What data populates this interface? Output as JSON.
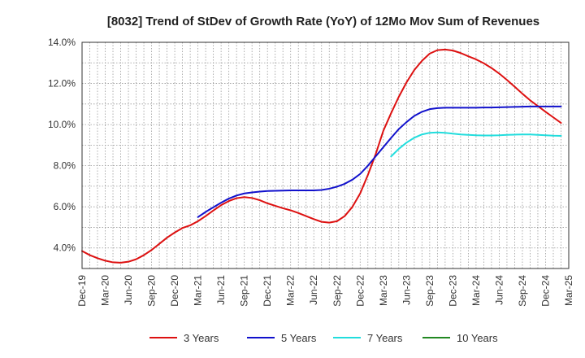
{
  "chart_data": {
    "type": "line",
    "title": "[8032]  Trend of StDev of Growth Rate (YoY) of 12Mo Mov Sum of Revenues",
    "xlabel": "",
    "ylabel": "",
    "ylim": [
      3.0,
      14.0
    ],
    "y_ticks": [
      4.0,
      6.0,
      8.0,
      10.0,
      12.0,
      14.0
    ],
    "y_tick_labels": [
      "4.0%",
      "6.0%",
      "8.0%",
      "10.0%",
      "12.0%",
      "14.0%"
    ],
    "x_tick_labels": [
      "Dec-19",
      "Mar-20",
      "Jun-20",
      "Sep-20",
      "Dec-20",
      "Mar-21",
      "Jun-21",
      "Sep-21",
      "Dec-21",
      "Mar-22",
      "Jun-22",
      "Sep-22",
      "Dec-22",
      "Mar-23",
      "Jun-23",
      "Sep-23",
      "Dec-23",
      "Mar-24",
      "Jun-24",
      "Sep-24",
      "Dec-24",
      "Mar-25"
    ],
    "x_months_span": 63,
    "grid": true,
    "legend_position": "bottom",
    "series": [
      {
        "name": "3 Years",
        "color": "#dd1111",
        "start_month": 0,
        "values": [
          3.85,
          3.65,
          3.5,
          3.38,
          3.3,
          3.28,
          3.33,
          3.45,
          3.65,
          3.9,
          4.2,
          4.5,
          4.75,
          4.97,
          5.1,
          5.3,
          5.55,
          5.82,
          6.08,
          6.28,
          6.42,
          6.47,
          6.43,
          6.32,
          6.17,
          6.05,
          5.93,
          5.83,
          5.7,
          5.55,
          5.4,
          5.27,
          5.23,
          5.3,
          5.55,
          6.0,
          6.65,
          7.55,
          8.55,
          9.7,
          10.55,
          11.35,
          12.05,
          12.65,
          13.1,
          13.45,
          13.62,
          13.65,
          13.6,
          13.48,
          13.32,
          13.17,
          12.98,
          12.75,
          12.48,
          12.17,
          11.84,
          11.5,
          11.18,
          10.9,
          10.62,
          10.35,
          10.08
        ]
      },
      {
        "name": "5 Years",
        "color": "#1111cc",
        "start_month": 15,
        "values": [
          5.5,
          5.75,
          5.98,
          6.2,
          6.4,
          6.55,
          6.65,
          6.7,
          6.74,
          6.77,
          6.78,
          6.79,
          6.8,
          6.8,
          6.8,
          6.8,
          6.82,
          6.88,
          6.98,
          7.12,
          7.32,
          7.6,
          8.0,
          8.45,
          8.9,
          9.35,
          9.78,
          10.12,
          10.42,
          10.62,
          10.75,
          10.8,
          10.82,
          10.82,
          10.82,
          10.82,
          10.82,
          10.83,
          10.83,
          10.84,
          10.85,
          10.86,
          10.87,
          10.88,
          10.88,
          10.88,
          10.88,
          10.88
        ]
      },
      {
        "name": "7 Years",
        "color": "#22dddd",
        "start_month": 40,
        "values": [
          8.45,
          8.82,
          9.12,
          9.36,
          9.52,
          9.6,
          9.62,
          9.6,
          9.56,
          9.52,
          9.5,
          9.48,
          9.47,
          9.47,
          9.48,
          9.5,
          9.51,
          9.52,
          9.52,
          9.5,
          9.48,
          9.46,
          9.45
        ]
      },
      {
        "name": "10 Years",
        "color": "#228822",
        "start_month": 0,
        "values": []
      }
    ]
  }
}
